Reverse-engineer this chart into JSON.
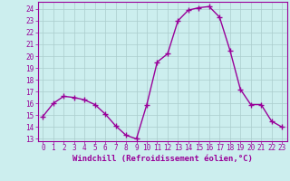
{
  "x": [
    0,
    1,
    2,
    3,
    4,
    5,
    6,
    7,
    8,
    9,
    10,
    11,
    12,
    13,
    14,
    15,
    16,
    17,
    18,
    19,
    20,
    21,
    22,
    23
  ],
  "y": [
    14.9,
    16.0,
    16.6,
    16.5,
    16.3,
    15.9,
    15.1,
    14.1,
    13.3,
    13.0,
    15.9,
    19.5,
    20.2,
    23.0,
    23.9,
    24.1,
    24.2,
    23.3,
    20.5,
    17.2,
    15.9,
    15.9,
    14.5,
    14.0
  ],
  "line_color": "#990099",
  "marker": "+",
  "marker_size": 4,
  "marker_lw": 1.0,
  "bg_color": "#cceeee",
  "grid_color": "#aacccc",
  "xlabel": "Windchill (Refroidissement éolien,°C)",
  "ylabel_ticks": [
    13,
    14,
    15,
    16,
    17,
    18,
    19,
    20,
    21,
    22,
    23,
    24
  ],
  "ylim": [
    12.8,
    24.6
  ],
  "xlim": [
    -0.5,
    23.5
  ],
  "tick_color": "#990099",
  "tick_fontsize": 5.5,
  "xlabel_fontsize": 6.5,
  "spine_color": "#990099",
  "linewidth": 1.0
}
